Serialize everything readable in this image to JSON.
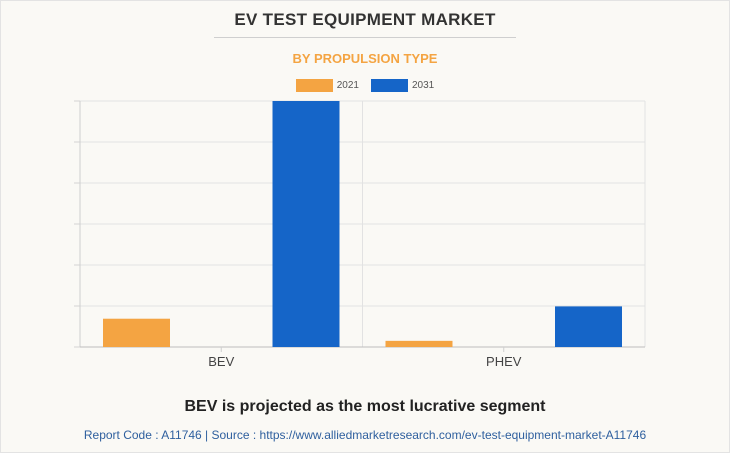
{
  "header": {
    "title": "EV TEST EQUIPMENT MARKET",
    "subtitle": "BY PROPULSION TYPE"
  },
  "caption": "BEV is projected as the most lucrative segment",
  "footer": {
    "text": "Report Code : A11746  |  Source : https://www.alliedmarketresearch.com/ev-test-equipment-market-A11746"
  },
  "colors": {
    "series_2021": "#f4a442",
    "series_2031": "#1565c8",
    "subtitle": "#f4a442",
    "grid": "#e2e2e2"
  },
  "chart_data": {
    "type": "bar",
    "title": "EV TEST EQUIPMENT MARKET",
    "subtitle": "BY PROPULSION TYPE",
    "categories": [
      "BEV",
      "PHEV"
    ],
    "series": [
      {
        "name": "2021",
        "values": [
          11.5,
          2.5
        ]
      },
      {
        "name": "2031",
        "values": [
          100,
          16.5
        ]
      }
    ],
    "ylim": [
      0,
      100
    ],
    "yticks": [
      0,
      16.67,
      33.33,
      50,
      66.67,
      83.33,
      100
    ],
    "y_tick_labels_shown": false,
    "grid": true,
    "legend": "top-center",
    "xlabel": "",
    "ylabel": ""
  }
}
